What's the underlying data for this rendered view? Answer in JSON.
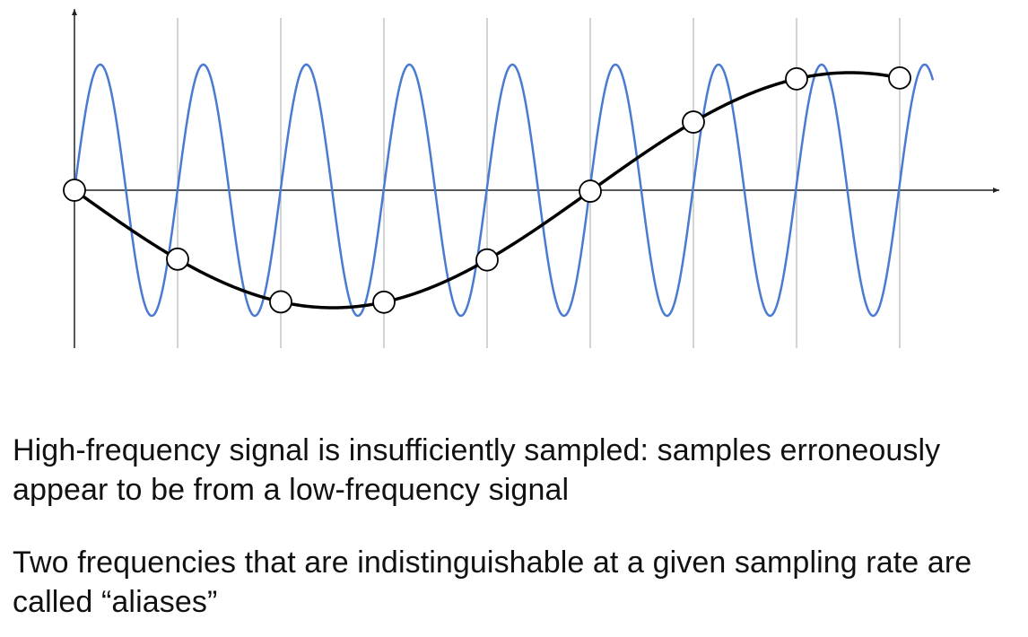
{
  "diagram": {
    "high_frequency_color": "#4a7bd0",
    "low_frequency_color": "#000000",
    "axis_color": "#222222",
    "gridline_color": "#aaaaaa",
    "sample_count": 9,
    "high_frequency_cycles": 8.33,
    "low_frequency_cycles": 0.83
  },
  "captions": [
    "High-frequency signal is insufficiently sampled: samples erroneously appear to be from a low-frequency signal",
    "Two frequencies that are indistinguishable at a given sampling rate are called “aliases”"
  ]
}
